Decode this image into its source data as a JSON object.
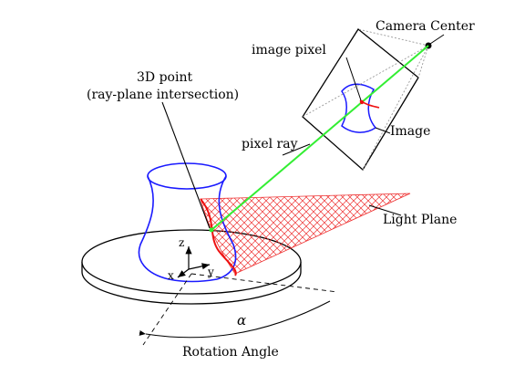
{
  "labels": {
    "camera_center": "Camera Center",
    "image_pixel": "image pixel",
    "image": "Image",
    "point_line1": "3D point",
    "point_line2": "(ray-plane intersection)",
    "pixel_ray": "pixel ray",
    "light_plane": "Light Plane",
    "alpha": "α",
    "rotation_angle": "Rotation Angle"
  },
  "axes": {
    "z": "z",
    "y": "y",
    "x": "x"
  },
  "colors": {
    "object_outline": "#1a1aff",
    "ray": "#33ee33",
    "light_plane": "#ee3333",
    "line": "#000000",
    "frustum": "#999999"
  }
}
